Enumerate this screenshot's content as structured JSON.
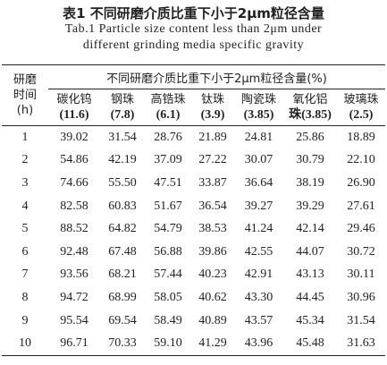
{
  "title": "表1 不同研磨介质比重下小于2μm粒径含量",
  "subtitle": [
    "Tab.1 Particle size content less than 2μm under",
    "different grinding media specific gravity"
  ],
  "table": {
    "row_header": [
      "研磨",
      "时间",
      "(h)"
    ],
    "group_header": "不同研磨介质比重下小于2μm粒径含量(%)",
    "columns": [
      {
        "name": "碳化钨",
        "note": "(11.6)"
      },
      {
        "name": "钢珠",
        "note": "(7.8)"
      },
      {
        "name": "高锆珠",
        "note": "(6.1)"
      },
      {
        "name": "钛珠",
        "note": "(3.9)"
      },
      {
        "name": "陶瓷珠",
        "note": "(3.85)"
      },
      {
        "name": "氧化铝",
        "note": "珠(3.85)"
      },
      {
        "name": "玻璃珠",
        "note": "(2.5)"
      }
    ],
    "rows": [
      [
        "1",
        "39.02",
        "31.54",
        "28.76",
        "21.89",
        "24.81",
        "25.86",
        "18.89"
      ],
      [
        "2",
        "54.86",
        "42.19",
        "37.09",
        "27.22",
        "30.07",
        "30.79",
        "22.10"
      ],
      [
        "3",
        "74.66",
        "55.50",
        "47.51",
        "33.87",
        "36.64",
        "38.19",
        "26.90"
      ],
      [
        "4",
        "82.58",
        "60.83",
        "51.67",
        "36.54",
        "39.27",
        "39.29",
        "27.61"
      ],
      [
        "5",
        "88.52",
        "64.82",
        "54.79",
        "38.53",
        "41.24",
        "42.14",
        "29.46"
      ],
      [
        "6",
        "92.48",
        "67.48",
        "56.88",
        "39.86",
        "42.55",
        "44.07",
        "30.72"
      ],
      [
        "7",
        "93.56",
        "68.21",
        "57.44",
        "40.23",
        "42.91",
        "43.13",
        "30.11"
      ],
      [
        "8",
        "94.72",
        "68.99",
        "58.05",
        "40.62",
        "43.30",
        "44.45",
        "30.96"
      ],
      [
        "9",
        "95.54",
        "69.54",
        "58.49",
        "40.89",
        "43.57",
        "45.34",
        "31.54"
      ],
      [
        "10",
        "96.71",
        "70.33",
        "59.10",
        "41.29",
        "43.96",
        "45.48",
        "31.63"
      ]
    ]
  }
}
